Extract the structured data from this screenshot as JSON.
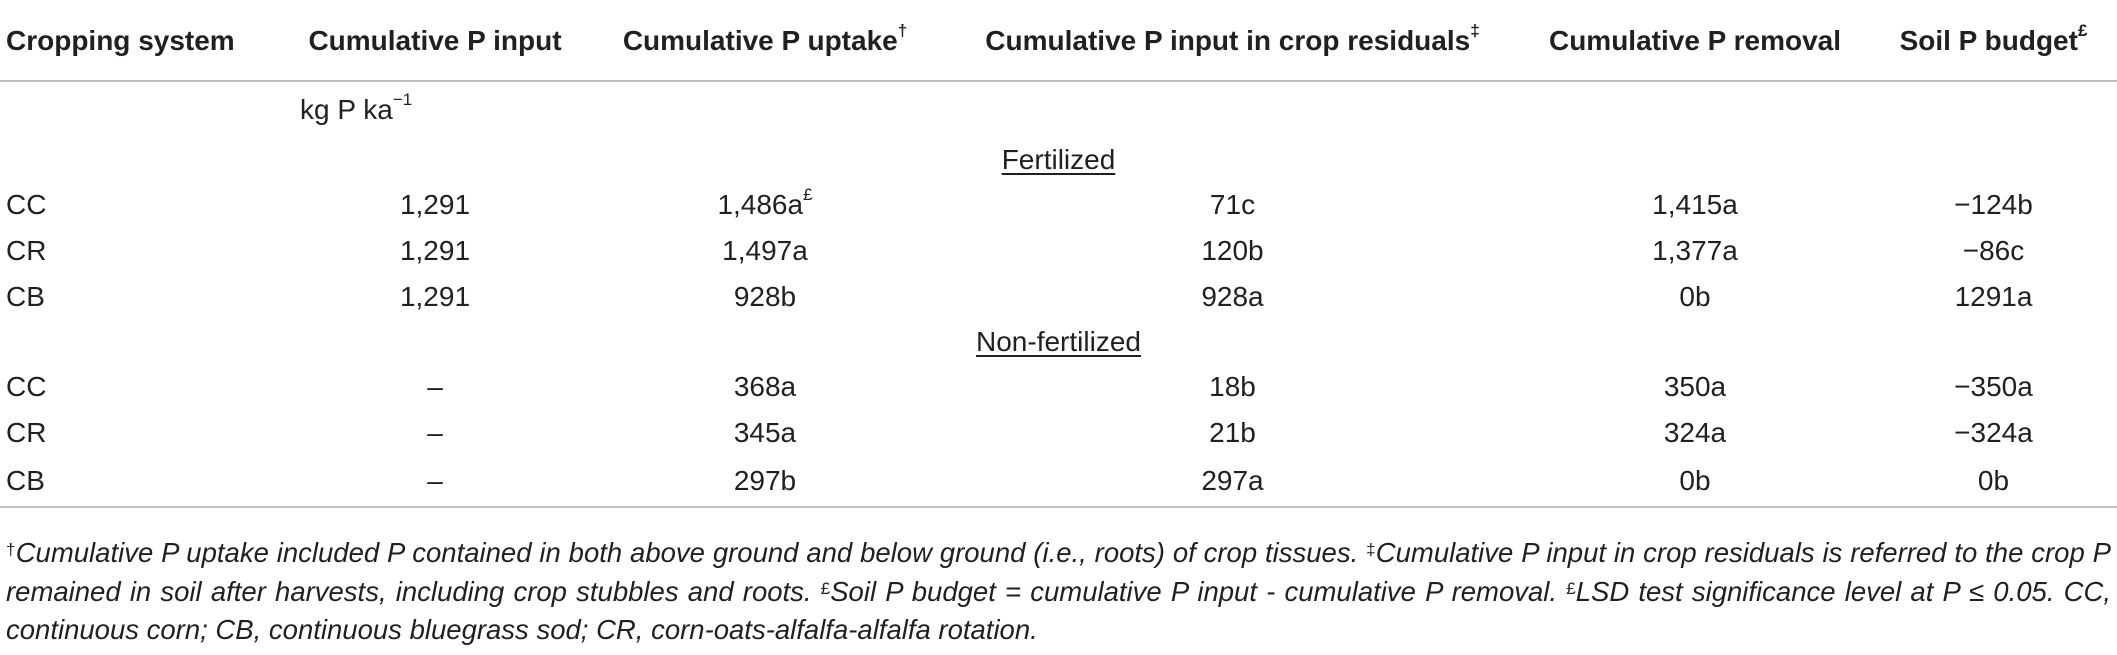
{
  "headers": {
    "cropping_system": "Cropping system",
    "p_input": "Cumulative P input",
    "p_uptake": "Cumulative P uptake",
    "p_uptake_mark": "†",
    "p_residual": "Cumulative P input in crop residuals",
    "p_residual_mark": "‡",
    "p_removal": "Cumulative P removal",
    "p_budget": "Soil P budget",
    "p_budget_mark": "£"
  },
  "unit": {
    "base": "kg P ka",
    "exponent": "−1"
  },
  "sections": [
    {
      "title": "Fertilized",
      "rows": [
        {
          "system": "CC",
          "input": "1,291",
          "uptake": "1,486a",
          "uptake_mark": "£",
          "residual": "71c",
          "removal": "1,415a",
          "budget": "−124b"
        },
        {
          "system": "CR",
          "input": "1,291",
          "uptake": "1,497a",
          "uptake_mark": "",
          "residual": "120b",
          "removal": "1,377a",
          "budget": "−86c"
        },
        {
          "system": "CB",
          "input": "1,291",
          "uptake": "928b",
          "uptake_mark": "",
          "residual": "928a",
          "removal": "0b",
          "budget": "1291a"
        }
      ]
    },
    {
      "title": "Non-fertilized",
      "rows": [
        {
          "system": "CC",
          "input": "–",
          "uptake": "368a",
          "uptake_mark": "",
          "residual": "18b",
          "removal": "350a",
          "budget": "−350a"
        },
        {
          "system": "CR",
          "input": "–",
          "uptake": "345a",
          "uptake_mark": "",
          "residual": "21b",
          "removal": "324a",
          "budget": "−324a"
        },
        {
          "system": "CB",
          "input": "–",
          "uptake": "297b",
          "uptake_mark": "",
          "residual": "297a",
          "removal": "0b",
          "budget": "0b"
        }
      ]
    }
  ],
  "footnotes": [
    {
      "mark": "†",
      "text": "Cumulative P uptake included P contained in both above ground and below ground (i.e., roots) of crop tissues. "
    },
    {
      "mark": "‡",
      "text": "Cumulative P input in crop residuals is referred to the crop P remained in soil after harvests, including crop stubbles and roots. "
    },
    {
      "mark": "£",
      "text": "Soil P budget = cumulative P input - cumulative P removal. "
    },
    {
      "mark": "£",
      "text": "LSD test significance level at P ≤ 0.05. CC, continuous corn; CB, continuous bluegrass sod; CR, corn-oats-alfalfa-alfalfa rotation."
    }
  ]
}
